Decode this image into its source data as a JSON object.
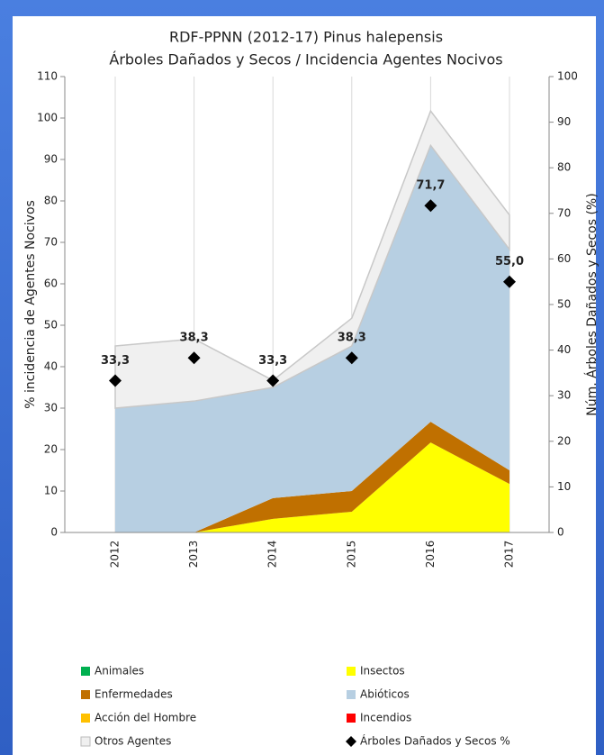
{
  "chart_data": {
    "type": "stacked_area",
    "title": "RDF-PPNN (2012-17) Pinus halepensis",
    "subtitle": "Árboles Dañados y Secos / Incidencia Agentes Nocivos",
    "y_label": "% incidencia de Agentes Nocivos",
    "y2_label": "Núm. Árboles Dañados y Secos (%)",
    "categories": [
      "2012",
      "2013",
      "2014",
      "2015",
      "2016",
      "2017"
    ],
    "ylim": [
      0,
      110
    ],
    "yticks": [
      0,
      10,
      20,
      30,
      40,
      50,
      60,
      70,
      80,
      90,
      100,
      110
    ],
    "y2lim": [
      0,
      100
    ],
    "y2ticks": [
      0,
      10,
      20,
      30,
      40,
      50,
      60,
      70,
      80,
      90,
      100
    ],
    "grid": true,
    "series": [
      {
        "name": "Animales",
        "color": "#00b050",
        "values": [
          0,
          0,
          0,
          0,
          0,
          0
        ]
      },
      {
        "name": "Insectos",
        "color": "#ffff00",
        "values": [
          0,
          0,
          3.3,
          5,
          21.7,
          11.7
        ]
      },
      {
        "name": "Enfermedades",
        "color": "#c07000",
        "values": [
          0,
          0,
          5,
          5,
          5,
          3.3
        ]
      },
      {
        "name": "Abióticos",
        "color": "#b7cfe2",
        "values": [
          30,
          31.7,
          26.7,
          35,
          66.7,
          53.3
        ]
      },
      {
        "name": "Acción del Hombre",
        "color": "#ffc000",
        "values": [
          0,
          0,
          0,
          0,
          0,
          0
        ]
      },
      {
        "name": "Incendios",
        "color": "#ff0000",
        "values": [
          0,
          0,
          0,
          0,
          0,
          0
        ]
      },
      {
        "name": "Otros Agentes",
        "color": "#f0f0f0",
        "values": [
          15,
          15,
          1.7,
          6.7,
          8.3,
          8.3
        ]
      },
      {
        "name": "Árboles Dañados y Secos %",
        "color": "#000000",
        "axis": "y2",
        "type": "scatter",
        "values": [
          33.3,
          38.3,
          33.3,
          38.3,
          71.7,
          55.0
        ],
        "value_labels": [
          "33,3",
          "38,3",
          "33,3",
          "38,3",
          "71,7",
          "55,0"
        ]
      }
    ]
  }
}
